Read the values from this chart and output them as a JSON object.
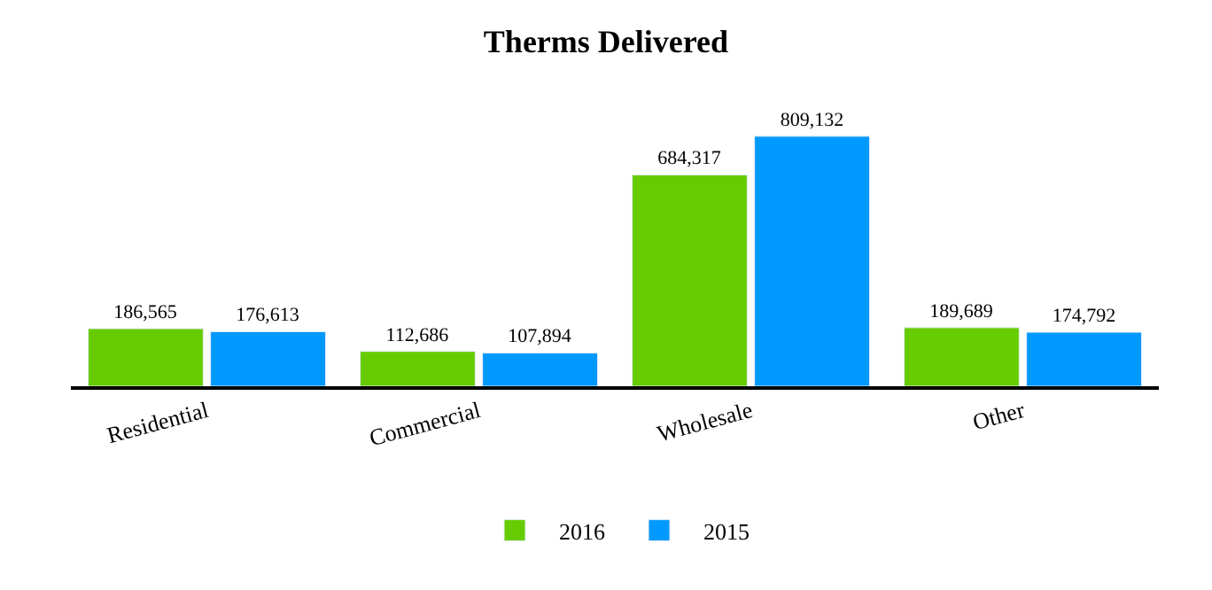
{
  "chart_data": {
    "type": "bar",
    "title": "Therms Delivered",
    "categories": [
      "Residential",
      "Commercial",
      "Wholesale",
      "Other"
    ],
    "series": [
      {
        "name": "2016",
        "color": "#66cc00",
        "values": [
          186565,
          112686,
          684317,
          189689
        ],
        "value_labels": [
          "186,565",
          "112,686",
          "684,317",
          "189,689"
        ]
      },
      {
        "name": "2015",
        "color": "#0099ff",
        "values": [
          176613,
          107894,
          809132,
          174792
        ],
        "value_labels": [
          "176,613",
          "107,894",
          "809,132",
          "174,792"
        ]
      }
    ],
    "legend": "bottom"
  }
}
